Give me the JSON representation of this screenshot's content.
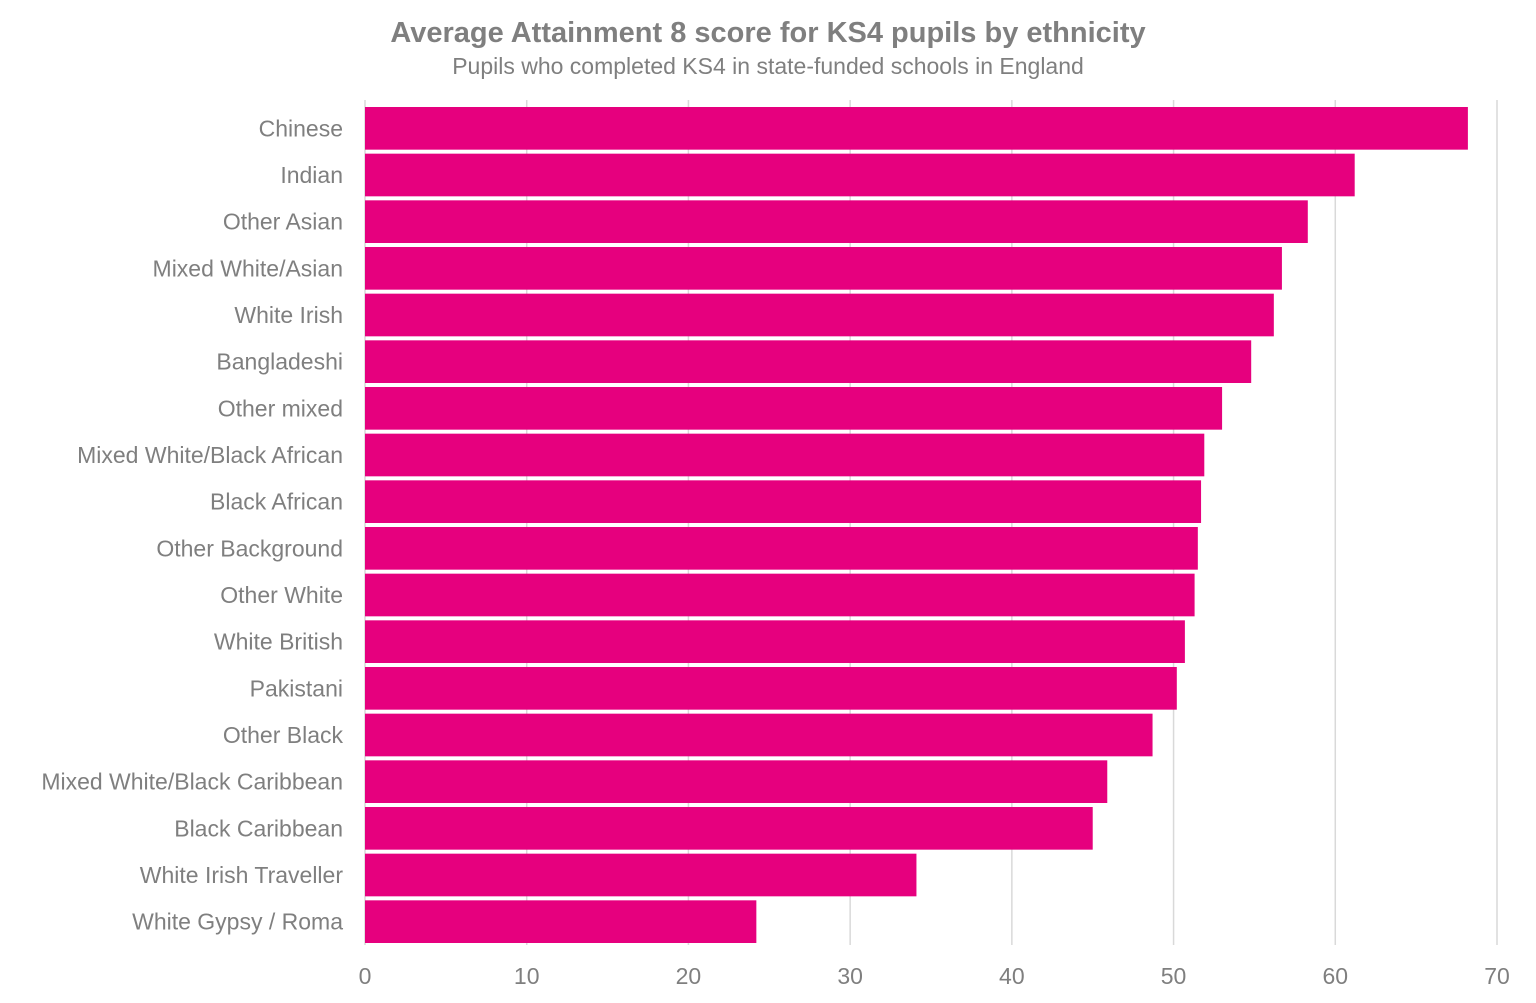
{
  "chart_data": {
    "type": "bar",
    "orientation": "horizontal",
    "title": "Average Attainment 8 score for KS4 pupils by ethnicity",
    "subtitle": "Pupils who completed KS4 in state-funded schools in England",
    "categories": [
      "Chinese",
      "Indian",
      "Other Asian",
      "Mixed White/Asian",
      "White Irish",
      "Bangladeshi",
      "Other mixed",
      "Mixed White/Black African",
      "Black African",
      "Other Background",
      "Other White",
      "White British",
      "Pakistani",
      "Other Black",
      "Mixed White/Black Caribbean",
      "Black Caribbean",
      "White Irish Traveller",
      "White Gypsy / Roma"
    ],
    "values": [
      68.2,
      61.2,
      58.3,
      56.7,
      56.2,
      54.8,
      53.0,
      51.9,
      51.7,
      51.5,
      51.3,
      50.7,
      50.2,
      48.7,
      45.9,
      45.0,
      34.1,
      24.2
    ],
    "xlim": [
      0,
      70
    ],
    "xticks": [
      0,
      10,
      20,
      30,
      40,
      50,
      60,
      70
    ],
    "grid": "vertical",
    "bar_color": "#e6007e"
  }
}
